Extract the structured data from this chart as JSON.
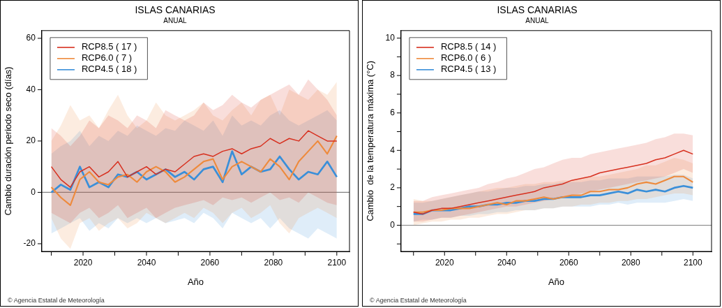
{
  "chart_data": [
    {
      "type": "line",
      "title": "ISLAS CANARIAS",
      "subtitle": "ANUAL",
      "xlabel": "Año",
      "ylabel": "Cambio duración periodo seco (días)",
      "legend": "top left",
      "marker": "none",
      "x": [
        2010,
        2013,
        2016,
        2019,
        2022,
        2025,
        2028,
        2031,
        2034,
        2037,
        2040,
        2043,
        2046,
        2049,
        2052,
        2055,
        2058,
        2061,
        2064,
        2067,
        2070,
        2073,
        2076,
        2079,
        2082,
        2085,
        2088,
        2091,
        2094,
        2097,
        2100
      ],
      "xlim": [
        2007,
        2104
      ],
      "xticks": [
        {
          "value": 2010,
          "label": null
        },
        2020,
        {
          "value": 2030,
          "label": null
        },
        2040,
        {
          "value": 2050,
          "label": null
        },
        2060,
        {
          "value": 2070,
          "label": null
        },
        2080,
        {
          "value": 2090,
          "label": null
        },
        2100
      ],
      "ylim": [
        -23,
        63
      ],
      "yticks": [
        -20,
        0,
        20,
        40,
        60
      ],
      "ref_lines": [
        {
          "axis": "y",
          "value": 0,
          "color": "#808080"
        }
      ],
      "series": [
        {
          "name": "RCP8.5 ( 17 )",
          "color": "#d7301f",
          "values": [
            10,
            5,
            2,
            8,
            10,
            6,
            8,
            12,
            6,
            8,
            10,
            7,
            9,
            8,
            11,
            14,
            15,
            14,
            16,
            17,
            15,
            17,
            18,
            21,
            19,
            21,
            20,
            24,
            22,
            20,
            20
          ],
          "upper": [
            25,
            22,
            18,
            22,
            28,
            25,
            30,
            28,
            25,
            30,
            28,
            25,
            32,
            30,
            28,
            30,
            35,
            32,
            34,
            38,
            35,
            33,
            36,
            38,
            40,
            42,
            38,
            44,
            40,
            36,
            30
          ],
          "lower": [
            -8,
            -10,
            -12,
            -8,
            -6,
            -10,
            -8,
            -5,
            -10,
            -8,
            -6,
            -10,
            -8,
            -6,
            -5,
            -4,
            -3,
            -5,
            -2,
            -3,
            -2,
            -4,
            -2,
            0,
            -3,
            -2,
            -4,
            0,
            -2,
            -4,
            -5
          ]
        },
        {
          "name": "RCP6.0 ( 7 )",
          "color": "#ee8a3c",
          "values": [
            2,
            -2,
            -5,
            5,
            8,
            4,
            3,
            6,
            7,
            4,
            8,
            10,
            8,
            4,
            6,
            9,
            12,
            13,
            5,
            10,
            12,
            10,
            8,
            13,
            10,
            5,
            12,
            16,
            20,
            15,
            22
          ],
          "upper": [
            20,
            26,
            34,
            28,
            30,
            25,
            32,
            38,
            30,
            25,
            28,
            35,
            30,
            28,
            30,
            32,
            35,
            30,
            28,
            32,
            35,
            30,
            36,
            38,
            30,
            40,
            38,
            36,
            40,
            38,
            43
          ],
          "lower": [
            -10,
            -18,
            -22,
            -12,
            -10,
            -15,
            -12,
            -10,
            -14,
            -12,
            -8,
            -10,
            -12,
            -10,
            -8,
            -10,
            -6,
            -8,
            -12,
            -8,
            -6,
            -10,
            -8,
            -5,
            -12,
            -16,
            -10,
            -8,
            -6,
            -8,
            -10
          ]
        },
        {
          "name": "RCP4.5 ( 18 )",
          "color": "#3a8fd9",
          "values": [
            0,
            3,
            1,
            10,
            2,
            4,
            2,
            7,
            6,
            8,
            5,
            7,
            9,
            6,
            8,
            5,
            9,
            10,
            4,
            16,
            7,
            10,
            8,
            9,
            14,
            9,
            5,
            8,
            7,
            12,
            6
          ],
          "upper": [
            15,
            18,
            20,
            24,
            18,
            22,
            20,
            24,
            22,
            26,
            24,
            22,
            25,
            24,
            28,
            26,
            24,
            28,
            22,
            30,
            26,
            28,
            26,
            30,
            32,
            28,
            26,
            28,
            30,
            32,
            28
          ],
          "lower": [
            -16,
            -14,
            -12,
            -10,
            -15,
            -12,
            -14,
            -10,
            -12,
            -10,
            -12,
            -10,
            -12,
            -11,
            -10,
            -12,
            -8,
            -10,
            -14,
            -8,
            -10,
            -12,
            -10,
            -14,
            -10,
            -14,
            -16,
            -18,
            -14,
            -16,
            -18
          ]
        }
      ],
      "annotations": [
        "© Agencia Estatal de Meteorología"
      ]
    },
    {
      "type": "line",
      "title": "ISLAS CANARIAS",
      "subtitle": "ANUAL",
      "xlabel": "Año",
      "ylabel": "Cambio  de la temperatura máxima (°C)",
      "legend": "top left",
      "marker": "none",
      "x": [
        2010,
        2013,
        2016,
        2019,
        2022,
        2025,
        2028,
        2031,
        2034,
        2037,
        2040,
        2043,
        2046,
        2049,
        2052,
        2055,
        2058,
        2061,
        2064,
        2067,
        2070,
        2073,
        2076,
        2079,
        2082,
        2085,
        2088,
        2091,
        2094,
        2097,
        2100
      ],
      "xlim": [
        2006,
        2106
      ],
      "xticks": [
        {
          "value": 2010,
          "label": null
        },
        2020,
        {
          "value": 2030,
          "label": null
        },
        2040,
        {
          "value": 2050,
          "label": null
        },
        2060,
        {
          "value": 2070,
          "label": null
        },
        2080,
        {
          "value": 2090,
          "label": null
        },
        2100
      ],
      "ylim": [
        -1.4,
        10.4
      ],
      "yticks": [
        {
          "value": -1,
          "label": null
        },
        0,
        {
          "value": 1,
          "label": null
        },
        2,
        {
          "value": 3,
          "label": null
        },
        4,
        {
          "value": 5,
          "label": null
        },
        6,
        {
          "value": 7,
          "label": null
        },
        8,
        {
          "value": 9,
          "label": null
        },
        10
      ],
      "ref_lines": [
        {
          "axis": "y",
          "value": 0,
          "color": "#808080"
        }
      ],
      "series": [
        {
          "name": "RCP8.5 ( 14 )",
          "color": "#d7301f",
          "values": [
            0.7,
            0.6,
            0.8,
            0.9,
            0.9,
            1.0,
            1.1,
            1.2,
            1.3,
            1.4,
            1.5,
            1.6,
            1.7,
            1.8,
            2.0,
            2.1,
            2.2,
            2.4,
            2.5,
            2.6,
            2.8,
            2.9,
            3.0,
            3.1,
            3.2,
            3.3,
            3.5,
            3.6,
            3.8,
            4.0,
            3.8
          ],
          "upper": [
            1.3,
            1.3,
            1.5,
            1.6,
            1.7,
            1.8,
            1.9,
            2.0,
            2.2,
            2.3,
            2.5,
            2.6,
            2.8,
            3.0,
            3.1,
            3.3,
            3.5,
            3.6,
            3.6,
            3.8,
            3.9,
            4.0,
            4.1,
            4.2,
            4.3,
            4.4,
            4.6,
            4.7,
            4.9,
            4.9,
            4.8
          ],
          "lower": [
            0.2,
            0.2,
            0.3,
            0.4,
            0.4,
            0.5,
            0.6,
            0.7,
            0.8,
            0.9,
            1.0,
            1.0,
            1.1,
            1.2,
            1.3,
            1.4,
            1.5,
            1.6,
            1.7,
            1.8,
            1.9,
            2.0,
            2.1,
            2.2,
            2.3,
            2.4,
            2.5,
            2.6,
            2.8,
            3.0,
            2.8
          ]
        },
        {
          "name": "RCP6.0 ( 6 )",
          "color": "#ee8a3c",
          "values": [
            0.7,
            0.7,
            0.8,
            0.8,
            0.9,
            0.9,
            0.9,
            1.0,
            1.1,
            1.2,
            1.1,
            1.3,
            1.3,
            1.4,
            1.5,
            1.4,
            1.5,
            1.6,
            1.6,
            1.8,
            1.8,
            1.9,
            1.9,
            2.0,
            2.2,
            2.3,
            2.2,
            2.4,
            2.6,
            2.6,
            2.3
          ],
          "upper": [
            1.4,
            1.3,
            1.3,
            1.4,
            1.5,
            1.6,
            1.7,
            1.8,
            1.9,
            2.0,
            2.0,
            2.1,
            2.2,
            2.2,
            2.3,
            2.3,
            2.4,
            2.4,
            2.5,
            2.6,
            2.6,
            2.7,
            2.8,
            2.9,
            3.0,
            3.2,
            3.2,
            3.4,
            3.6,
            3.5,
            3.3
          ],
          "lower": [
            0.0,
            0.1,
            0.2,
            0.2,
            0.3,
            0.3,
            0.4,
            0.4,
            0.5,
            0.6,
            0.6,
            0.7,
            0.8,
            0.8,
            0.9,
            0.9,
            1.0,
            1.0,
            1.1,
            1.1,
            1.2,
            1.2,
            1.3,
            1.3,
            1.4,
            1.4,
            1.5,
            1.6,
            1.7,
            1.7,
            1.6
          ]
        },
        {
          "name": "RCP4.5 ( 13 )",
          "color": "#3a8fd9",
          "values": [
            0.6,
            0.6,
            0.8,
            0.8,
            0.8,
            0.9,
            1.0,
            1.0,
            1.1,
            1.1,
            1.2,
            1.2,
            1.3,
            1.3,
            1.4,
            1.4,
            1.5,
            1.5,
            1.5,
            1.6,
            1.6,
            1.7,
            1.8,
            1.7,
            1.9,
            1.8,
            1.9,
            1.8,
            2.0,
            2.1,
            2.0
          ],
          "upper": [
            1.2,
            1.2,
            1.3,
            1.4,
            1.5,
            1.6,
            1.7,
            1.8,
            1.8,
            1.9,
            2.0,
            2.0,
            2.1,
            2.1,
            2.2,
            2.2,
            2.3,
            2.3,
            2.3,
            2.4,
            2.4,
            2.5,
            2.5,
            2.5,
            2.6,
            2.6,
            2.6,
            2.6,
            2.7,
            2.7,
            2.5
          ],
          "lower": [
            0.2,
            0.3,
            0.3,
            0.4,
            0.4,
            0.5,
            0.5,
            0.6,
            0.6,
            0.7,
            0.7,
            0.8,
            0.8,
            0.8,
            0.9,
            0.9,
            1.0,
            1.0,
            1.0,
            1.0,
            1.1,
            1.1,
            1.2,
            1.1,
            1.2,
            1.2,
            1.2,
            1.2,
            1.3,
            1.4,
            1.3
          ]
        }
      ],
      "annotations": [
        "© Agencia Estatal de Meteorología"
      ]
    }
  ]
}
